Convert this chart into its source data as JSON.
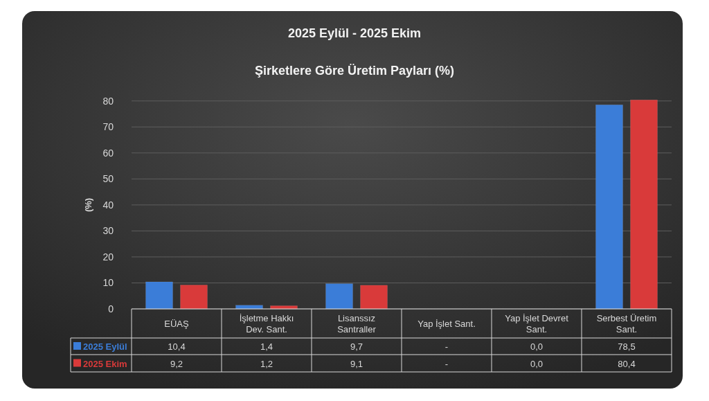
{
  "chart_data": {
    "type": "bar",
    "title": "2025 Eylül - 2025 Ekim",
    "subtitle": "Şirketlere Göre Üretim Payları (%)",
    "ylabel": "(%)",
    "categories": [
      "EÜAŞ",
      "İşletme Hakkı Dev. Sant.",
      "Lisanssız Santraller",
      "Yap İşlet Sant.",
      "Yap İşlet Devret Sant.",
      "Serbest Üretim Sant."
    ],
    "series": [
      {
        "name": "2025 Eylül",
        "color": "#3b7dd8",
        "values": [
          10.4,
          1.4,
          9.7,
          null,
          0.0,
          78.5
        ],
        "value_labels": [
          "10,4",
          "1,4",
          "9,7",
          "-",
          "0,0",
          "78,5"
        ]
      },
      {
        "name": "2025 Ekim",
        "color": "#d93a3a",
        "values": [
          9.2,
          1.2,
          9.1,
          null,
          0.0,
          80.4
        ],
        "value_labels": [
          "9,2",
          "1,2",
          "9,1",
          "-",
          "0,0",
          "80,4"
        ]
      }
    ],
    "ylim": [
      0,
      81
    ],
    "yticks": [
      0,
      10,
      20,
      30,
      40,
      50,
      60,
      70,
      80
    ],
    "grid": "y",
    "legend": "bottom"
  }
}
